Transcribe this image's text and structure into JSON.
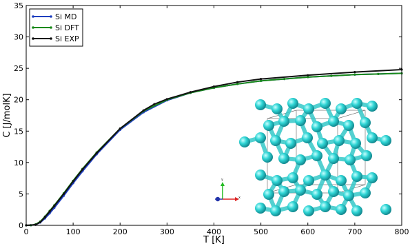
{
  "chart_data": {
    "type": "line",
    "title": "",
    "xlabel": "T [K]",
    "ylabel": "C [J/molK]",
    "xlim": [
      0,
      800
    ],
    "ylim": [
      0,
      35
    ],
    "xticks": [
      0,
      100,
      200,
      300,
      400,
      500,
      600,
      700,
      800
    ],
    "yticks": [
      0,
      5,
      10,
      15,
      20,
      25,
      30,
      35
    ],
    "legend_position": "top-left",
    "grid": false,
    "series": [
      {
        "name": "Si MD",
        "color": "#1f3fbf",
        "x": [
          0,
          10,
          20,
          30,
          40,
          50,
          60,
          80,
          100,
          120,
          150,
          200,
          250,
          300,
          350,
          400,
          450,
          500,
          550,
          600,
          650,
          700,
          750,
          800
        ],
        "y": [
          0,
          0.01,
          0.1,
          0.45,
          1.1,
          1.9,
          2.8,
          4.7,
          6.7,
          8.6,
          11.3,
          15.2,
          18.0,
          19.9,
          21.1,
          21.9,
          22.5,
          23.0,
          23.3,
          23.6,
          23.8,
          24.0,
          24.1,
          24.2
        ]
      },
      {
        "name": "Si DFT",
        "color": "#1a8a1a",
        "x": [
          0,
          10,
          20,
          30,
          40,
          50,
          60,
          80,
          100,
          120,
          150,
          200,
          250,
          300,
          350,
          400,
          450,
          500,
          550,
          600,
          650,
          700,
          750,
          800
        ],
        "y": [
          0,
          0.02,
          0.15,
          0.6,
          1.4,
          2.3,
          3.2,
          5.1,
          7.1,
          9.0,
          11.6,
          15.4,
          18.2,
          20.0,
          21.1,
          21.9,
          22.5,
          23.0,
          23.3,
          23.6,
          23.8,
          24.0,
          24.1,
          24.2
        ]
      },
      {
        "name": "Si EXP",
        "color": "#111111",
        "x": [
          0,
          20,
          30,
          40,
          50,
          60,
          80,
          100,
          120,
          150,
          200,
          250,
          273,
          300,
          350,
          400,
          450,
          500,
          600,
          700,
          800
        ],
        "y": [
          0,
          0.1,
          0.5,
          1.3,
          2.2,
          3.1,
          5.0,
          7.0,
          8.9,
          11.5,
          15.4,
          18.3,
          19.3,
          20.1,
          21.2,
          22.1,
          22.8,
          23.3,
          23.9,
          24.4,
          24.8
        ]
      }
    ]
  },
  "inset": {
    "axis_glyph": {
      "x_label": "x",
      "y_label": "y",
      "x_color": "#dd2222",
      "y_color": "#22bb22",
      "z_color": "#2233aa"
    },
    "atom_color": "#2fd5d5",
    "bond_color": "#36c8c8"
  }
}
